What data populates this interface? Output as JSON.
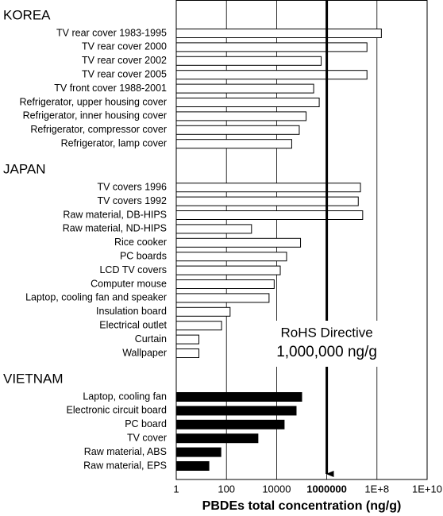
{
  "chart_data": {
    "type": "hbar",
    "x_label": "PBDEs total concentration (ng/g)",
    "log_x": true,
    "xlim": [
      1,
      10000000000
    ],
    "xticks": [
      1,
      100,
      10000,
      1000000,
      {
        "value": 100000000,
        "label": "1E+8"
      },
      {
        "value": 10000000000,
        "label": "1E+10"
      }
    ],
    "grid": true,
    "groups": [
      {
        "name": "KOREA",
        "color": "#ffffff",
        "categories": [
          "TV rear cover 1983-1995",
          "TV rear cover 2000",
          "TV rear cover 2002",
          "TV rear cover 2005",
          "TV front cover 1988-2001",
          "Refrigerator, upper housing cover",
          "Refrigerator, inner housing cover",
          "Refrigerator, compressor cover",
          "Refrigerator, lamp cover"
        ],
        "values": [
          150000000,
          40000000,
          600000,
          40000000,
          300000,
          500000,
          150000,
          80000,
          40000
        ]
      },
      {
        "name": "JAPAN",
        "color": "#ffffff",
        "categories": [
          "TV covers 1996",
          "TV covers 1992",
          "Raw material, DB-HIPS",
          "Raw material, ND-HIPS",
          "Rice cooker",
          "PC boards",
          "LCD TV covers",
          "Computer mouse",
          "Laptop, cooling fan and speaker",
          "Insulation board",
          "Electrical outlet",
          "Curtain",
          "Wallpaper"
        ],
        "values": [
          22000000,
          18000000,
          27000000,
          1000,
          90000,
          25000,
          14000,
          8000,
          5000,
          140,
          64,
          8,
          8
        ]
      },
      {
        "name": "VIETNAM",
        "color": "#000000",
        "categories": [
          "Laptop, cooling fan",
          "Electronic circuit board",
          "PC board",
          "TV cover",
          "Raw material, ABS",
          "Raw material, EPS"
        ],
        "values": [
          100000,
          60000,
          20000,
          1800,
          60,
          20
        ]
      }
    ],
    "threshold": 1000000,
    "annotation": [
      "RoHS Directive",
      "1,000,000 ng/g"
    ]
  }
}
